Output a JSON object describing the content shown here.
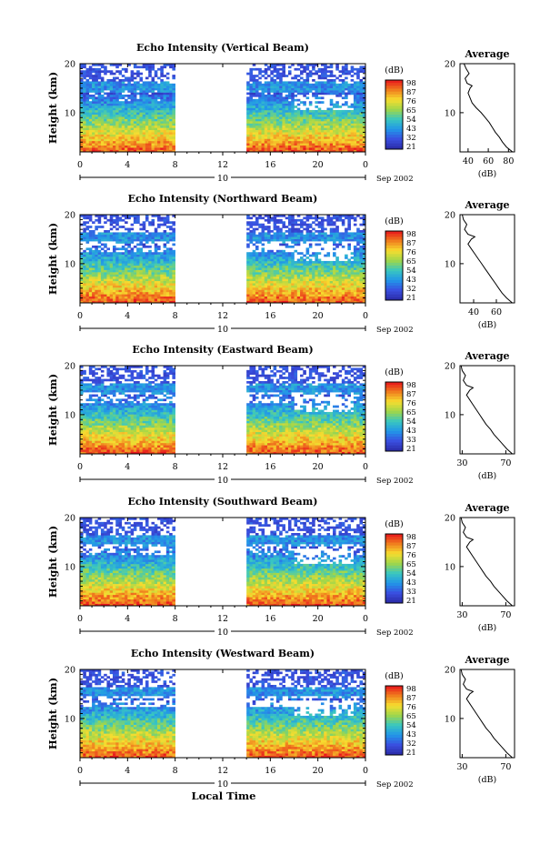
{
  "figure": {
    "local_time_label": "Local Time"
  },
  "chart_data": [
    {
      "type": "heatmap",
      "title": "Echo Intensity (Vertical Beam)",
      "ylabel": "Height (km)",
      "xlabel": "Local Time",
      "x_ticks": [
        "0",
        "4",
        "8",
        "12",
        "16",
        "20",
        "0"
      ],
      "day_label": "10",
      "date_label": "Sep 2002",
      "y_ticks": [
        "20",
        "10"
      ],
      "xlim": [
        0,
        24
      ],
      "ylim": [
        2,
        20
      ],
      "data_gap_hours": [
        8,
        14
      ],
      "colorbar": {
        "unit": "(dB)",
        "labels": [
          "98",
          "87",
          "76",
          "65",
          "54",
          "43",
          "32",
          "21"
        ]
      },
      "profile": {
        "title": "Average",
        "xlabel": "(dB)",
        "x_ticks": [
          "40",
          "60",
          "80"
        ],
        "xlim": [
          32,
          86
        ],
        "y_ticks": [
          "20",
          "10"
        ],
        "heights": [
          2,
          3,
          4,
          5,
          6,
          7,
          8,
          9,
          10,
          11,
          12,
          13,
          14,
          15,
          15.5,
          16,
          17,
          18,
          19,
          20
        ],
        "values": [
          84,
          78,
          74,
          71,
          67,
          64,
          61,
          57,
          53,
          48,
          44,
          42,
          40,
          42,
          44,
          39,
          37,
          41,
          38,
          36
        ]
      }
    },
    {
      "type": "heatmap",
      "title": "Echo Intensity (Northward Beam)",
      "ylabel": "Height (km)",
      "xlabel": "Local Time",
      "x_ticks": [
        "0",
        "4",
        "8",
        "12",
        "16",
        "20",
        "0"
      ],
      "day_label": "10",
      "date_label": "Sep 2002",
      "y_ticks": [
        "20",
        "10"
      ],
      "xlim": [
        0,
        24
      ],
      "ylim": [
        2,
        20
      ],
      "data_gap_hours": [
        8,
        14
      ],
      "colorbar": {
        "unit": "(dB)",
        "labels": [
          "98",
          "87",
          "76",
          "65",
          "54",
          "43",
          "32",
          "21"
        ]
      },
      "profile": {
        "title": "Average",
        "xlabel": "(dB)",
        "x_ticks": [
          "40",
          "60"
        ],
        "xlim": [
          28,
          76
        ],
        "y_ticks": [
          "20",
          "10"
        ],
        "heights": [
          2,
          3,
          4,
          5,
          6,
          7,
          8,
          9,
          10,
          11,
          12,
          13,
          14,
          15,
          15.5,
          16,
          17,
          18,
          19,
          20
        ],
        "values": [
          74,
          69,
          65,
          62,
          59,
          56,
          53,
          50,
          47,
          44,
          41,
          38,
          35,
          38,
          41,
          35,
          32,
          34,
          31,
          30
        ]
      }
    },
    {
      "type": "heatmap",
      "title": "Echo Intensity (Eastward Beam)",
      "ylabel": "Height (km)",
      "xlabel": "Local Time",
      "x_ticks": [
        "0",
        "4",
        "8",
        "12",
        "16",
        "20",
        "0"
      ],
      "day_label": "10",
      "date_label": "Sep 2002",
      "y_ticks": [
        "20",
        "10"
      ],
      "xlim": [
        0,
        24
      ],
      "ylim": [
        2,
        20
      ],
      "data_gap_hours": [
        8,
        14
      ],
      "colorbar": {
        "unit": "(dB)",
        "labels": [
          "98",
          "87",
          "76",
          "65",
          "54",
          "43",
          "33",
          "21"
        ]
      },
      "profile": {
        "title": "Average",
        "xlabel": "(dB)",
        "x_ticks": [
          "30",
          "70"
        ],
        "xlim": [
          28,
          78
        ],
        "y_ticks": [
          "20",
          "10"
        ],
        "heights": [
          2,
          3,
          4,
          5,
          6,
          7,
          8,
          9,
          10,
          11,
          12,
          13,
          14,
          15,
          15.5,
          16,
          17,
          18,
          19,
          20
        ],
        "values": [
          76,
          71,
          67,
          63,
          59,
          56,
          52,
          49,
          46,
          43,
          40,
          37,
          34,
          37,
          40,
          34,
          31,
          33,
          30,
          29
        ]
      }
    },
    {
      "type": "heatmap",
      "title": "Echo Intensity (Southward Beam)",
      "ylabel": "Height (km)",
      "xlabel": "Local Time",
      "x_ticks": [
        "0",
        "4",
        "8",
        "12",
        "16",
        "20",
        "0"
      ],
      "day_label": "10",
      "date_label": "Sep 2002",
      "y_ticks": [
        "20",
        "10"
      ],
      "xlim": [
        0,
        24
      ],
      "ylim": [
        2,
        20
      ],
      "data_gap_hours": [
        8,
        14
      ],
      "colorbar": {
        "unit": "(dB)",
        "labels": [
          "98",
          "87",
          "76",
          "65",
          "54",
          "43",
          "33",
          "21"
        ]
      },
      "profile": {
        "title": "Average",
        "xlabel": "(dB)",
        "x_ticks": [
          "30",
          "70"
        ],
        "xlim": [
          28,
          78
        ],
        "y_ticks": [
          "20",
          "10"
        ],
        "heights": [
          2,
          3,
          4,
          5,
          6,
          7,
          8,
          9,
          10,
          11,
          12,
          13,
          14,
          15,
          15.5,
          16,
          17,
          18,
          19,
          20
        ],
        "values": [
          76,
          71,
          67,
          63,
          59,
          56,
          52,
          49,
          46,
          43,
          40,
          37,
          34,
          37,
          40,
          34,
          31,
          33,
          30,
          29
        ]
      }
    },
    {
      "type": "heatmap",
      "title": "Echo Intensity (Westward Beam)",
      "ylabel": "Height (km)",
      "xlabel": "Local Time",
      "x_ticks": [
        "0",
        "4",
        "8",
        "12",
        "16",
        "20",
        "0"
      ],
      "day_label": "10",
      "date_label": "Sep 2002",
      "y_ticks": [
        "20",
        "10"
      ],
      "xlim": [
        0,
        24
      ],
      "ylim": [
        2,
        20
      ],
      "data_gap_hours": [
        8,
        14
      ],
      "colorbar": {
        "unit": "(dB)",
        "labels": [
          "98",
          "87",
          "76",
          "65",
          "54",
          "43",
          "32",
          "21"
        ]
      },
      "profile": {
        "title": "Average",
        "xlabel": "(dB)",
        "x_ticks": [
          "30",
          "70"
        ],
        "xlim": [
          28,
          78
        ],
        "y_ticks": [
          "20",
          "10"
        ],
        "heights": [
          2,
          3,
          4,
          5,
          6,
          7,
          8,
          9,
          10,
          11,
          12,
          13,
          14,
          15,
          15.5,
          16,
          17,
          18,
          19,
          20
        ],
        "values": [
          76,
          71,
          67,
          63,
          59,
          56,
          52,
          49,
          46,
          43,
          40,
          37,
          34,
          37,
          40,
          34,
          31,
          33,
          30,
          29
        ]
      }
    }
  ]
}
